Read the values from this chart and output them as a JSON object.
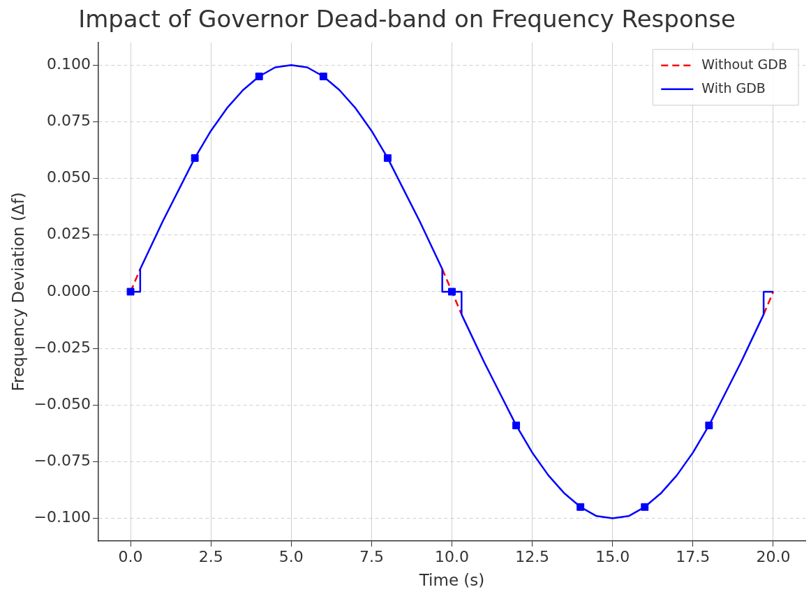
{
  "chart_data": {
    "type": "line",
    "title": "Impact of Governor Dead-band on Frequency Response",
    "xlabel": "Time (s)",
    "ylabel": "Frequency Deviation (Δf)",
    "xlim": [
      -1,
      21
    ],
    "xticks": [
      {
        "value": 0,
        "label": "0.0"
      },
      {
        "value": 2.5,
        "label": "2.5"
      },
      {
        "value": 5,
        "label": "5.0"
      },
      {
        "value": 7.5,
        "label": "7.5"
      },
      {
        "value": 10,
        "label": "10.0"
      },
      {
        "value": 12.5,
        "label": "12.5"
      },
      {
        "value": 15,
        "label": "15.0"
      },
      {
        "value": 17.5,
        "label": "17.5"
      },
      {
        "value": 20,
        "label": "20.0"
      }
    ],
    "ylim": [
      -0.11,
      0.11
    ],
    "yticks": [
      {
        "value": -0.1,
        "label": "−0.100"
      },
      {
        "value": -0.075,
        "label": "−0.075"
      },
      {
        "value": -0.05,
        "label": "−0.050"
      },
      {
        "value": -0.025,
        "label": "−0.025"
      },
      {
        "value": 0,
        "label": "0.000"
      },
      {
        "value": 0.025,
        "label": "0.025"
      },
      {
        "value": 0.05,
        "label": "0.050"
      },
      {
        "value": 0.075,
        "label": "0.075"
      },
      {
        "value": 0.1,
        "label": "0.100"
      }
    ],
    "grid": true,
    "legend": "top right",
    "series": [
      {
        "name": "Without GDB",
        "color": "#ff0000",
        "line_style": "dashed",
        "x": [
          0,
          0.3,
          1,
          9.7,
          10,
          10.3,
          11,
          19.7,
          20
        ],
        "values": [
          0,
          0.01,
          null,
          0.01,
          0,
          -0.01,
          null,
          -0.01,
          0
        ]
      },
      {
        "name": "With GDB",
        "color": "#0000ff",
        "line_style": "solid",
        "x": [
          0,
          0.3,
          0.3,
          0.5,
          1,
          1.5,
          2,
          2.5,
          3,
          3.5,
          4,
          4.5,
          5,
          5.5,
          6,
          6.5,
          7,
          7.5,
          8,
          8.5,
          9,
          9.5,
          9.7,
          9.7,
          10,
          10.3,
          10.3,
          10.5,
          11,
          11.5,
          12,
          12.5,
          13,
          13.5,
          14,
          14.5,
          15,
          15.5,
          16,
          16.5,
          17,
          17.5,
          18,
          18.5,
          19,
          19.5,
          19.7,
          19.7,
          20
        ],
        "values": [
          0,
          0,
          0.01,
          0.016,
          0.031,
          0.045,
          0.059,
          0.071,
          0.081,
          0.089,
          0.095,
          0.099,
          0.1,
          0.099,
          0.095,
          0.089,
          0.081,
          0.071,
          0.059,
          0.045,
          0.031,
          0.016,
          0.01,
          0,
          0,
          0,
          -0.01,
          -0.016,
          -0.031,
          -0.045,
          -0.059,
          -0.071,
          -0.081,
          -0.089,
          -0.095,
          -0.099,
          -0.1,
          -0.099,
          -0.095,
          -0.089,
          -0.081,
          -0.071,
          -0.059,
          -0.045,
          -0.031,
          -0.016,
          -0.01,
          0,
          0
        ]
      },
      {
        "type": "scatter",
        "color": "#0000ff",
        "marker": "square",
        "x": [
          0,
          2,
          4,
          6,
          8,
          10,
          12,
          14,
          16,
          18
        ],
        "values": [
          0,
          0.059,
          0.095,
          0.095,
          0.059,
          0,
          -0.059,
          -0.095,
          -0.095,
          -0.059
        ]
      }
    ]
  }
}
